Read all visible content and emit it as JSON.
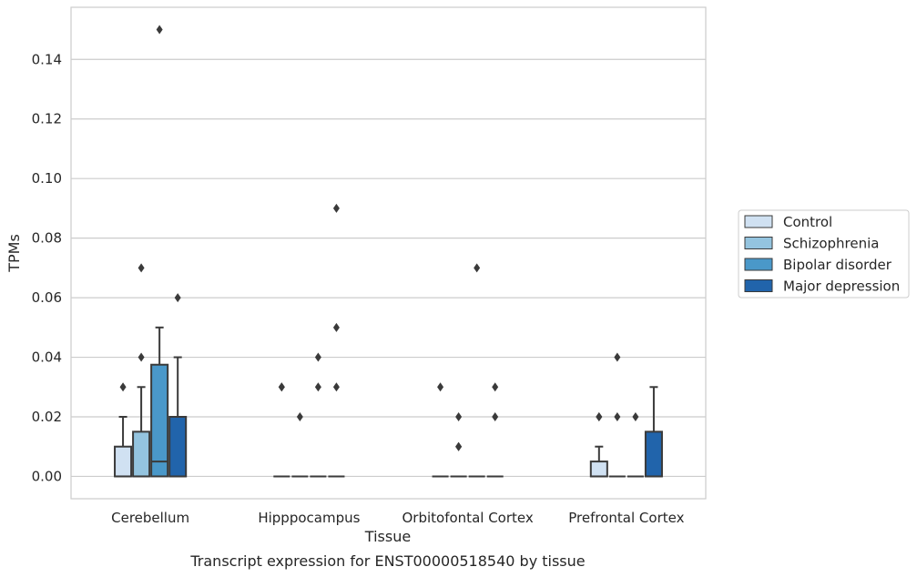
{
  "chart_data": {
    "type": "box",
    "title": "Transcript expression for ENST00000518540 by tissue",
    "xlabel": "Tissue",
    "ylabel": "TPMs",
    "ylim": [
      -0.0075,
      0.1575
    ],
    "yticks": [
      0.0,
      0.02,
      0.04,
      0.06,
      0.08,
      0.1,
      0.12,
      0.14
    ],
    "ytick_labels": [
      "0.00",
      "0.02",
      "0.04",
      "0.06",
      "0.08",
      "0.10",
      "0.12",
      "0.14"
    ],
    "grid": true,
    "legend_position": "right",
    "categories": [
      "Cerebellum",
      "Hipppocampus",
      "Orbitofontal Cortex",
      "Prefrontal Cortex"
    ],
    "series": [
      {
        "name": "Control",
        "color": "#d0e1f2",
        "boxes": [
          {
            "q1": 0,
            "median": 0,
            "q3": 0.01,
            "whisker_low": 0,
            "whisker_high": 0.02,
            "outliers": [
              0.03
            ]
          },
          {
            "q1": 0,
            "median": 0,
            "q3": 0,
            "whisker_low": 0,
            "whisker_high": 0,
            "outliers": [
              0.03,
              0.03
            ]
          },
          {
            "q1": 0,
            "median": 0,
            "q3": 0,
            "whisker_low": 0,
            "whisker_high": 0,
            "outliers": [
              0.03
            ]
          },
          {
            "q1": 0,
            "median": 0,
            "q3": 0.005,
            "whisker_low": 0,
            "whisker_high": 0.01,
            "outliers": [
              0.02,
              0.02
            ]
          }
        ]
      },
      {
        "name": "Schizophrenia",
        "color": "#94c4df",
        "boxes": [
          {
            "q1": 0,
            "median": 0,
            "q3": 0.015,
            "whisker_low": 0,
            "whisker_high": 0.03,
            "outliers": [
              0.04,
              0.07
            ]
          },
          {
            "q1": 0,
            "median": 0,
            "q3": 0,
            "whisker_low": 0,
            "whisker_high": 0,
            "outliers": [
              0.02
            ]
          },
          {
            "q1": 0,
            "median": 0,
            "q3": 0,
            "whisker_low": 0,
            "whisker_high": 0,
            "outliers": [
              0.01,
              0.01,
              0.02
            ]
          },
          {
            "q1": 0,
            "median": 0,
            "q3": 0,
            "whisker_low": 0,
            "whisker_high": 0,
            "outliers": [
              0.02,
              0.04
            ]
          }
        ]
      },
      {
        "name": "Bipolar disorder",
        "color": "#4a98c9",
        "boxes": [
          {
            "q1": 0,
            "median": 0.005,
            "q3": 0.0375,
            "whisker_low": 0,
            "whisker_high": 0.05,
            "outliers": [
              0.15
            ]
          },
          {
            "q1": 0,
            "median": 0,
            "q3": 0,
            "whisker_low": 0,
            "whisker_high": 0,
            "outliers": [
              0.03,
              0.04
            ]
          },
          {
            "q1": 0,
            "median": 0,
            "q3": 0,
            "whisker_low": 0,
            "whisker_high": 0,
            "outliers": [
              0.07
            ]
          },
          {
            "q1": 0,
            "median": 0,
            "q3": 0,
            "whisker_low": 0,
            "whisker_high": 0,
            "outliers": [
              0.02
            ]
          }
        ]
      },
      {
        "name": "Major depression",
        "color": "#2164ab",
        "boxes": [
          {
            "q1": 0,
            "median": 0,
            "q3": 0.02,
            "whisker_low": 0,
            "whisker_high": 0.04,
            "outliers": [
              0.06
            ]
          },
          {
            "q1": 0,
            "median": 0,
            "q3": 0,
            "whisker_low": 0,
            "whisker_high": 0,
            "outliers": [
              0.03,
              0.05,
              0.09
            ]
          },
          {
            "q1": 0,
            "median": 0,
            "q3": 0,
            "whisker_low": 0,
            "whisker_high": 0,
            "outliers": [
              0.02,
              0.03
            ]
          },
          {
            "q1": 0,
            "median": 0,
            "q3": 0.015,
            "whisker_low": 0,
            "whisker_high": 0.03,
            "outliers": []
          }
        ]
      }
    ]
  }
}
